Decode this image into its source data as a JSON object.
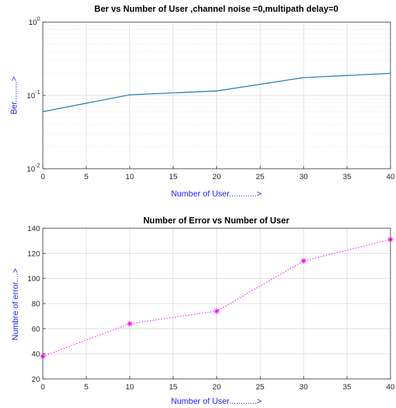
{
  "chart_data": [
    {
      "type": "line",
      "title": "Ber vs Number of User ,channel noise =0,multipath delay=0",
      "xlabel": "Number of User............>",
      "ylabel": "Ber.........>",
      "yscale": "log",
      "grid": true,
      "xlim": [
        0,
        40
      ],
      "ylim": [
        0.01,
        1
      ],
      "xticks": [
        "0",
        "5",
        "10",
        "15",
        "20",
        "25",
        "30",
        "35",
        "40"
      ],
      "yticks": [
        {
          "value": 1,
          "base": "10",
          "exp": "0"
        },
        {
          "value": 0.1,
          "base": "10",
          "exp": "-1"
        },
        {
          "value": 0.01,
          "base": "10",
          "exp": "-2"
        }
      ],
      "line_color": "#1f77b4",
      "x": [
        0,
        10,
        20,
        30,
        40
      ],
      "y": [
        0.06,
        0.102,
        0.115,
        0.175,
        0.2
      ]
    },
    {
      "type": "line",
      "title": "Number of Error vs Number of User",
      "xlabel": "Number of User............>",
      "ylabel": "Numbre of error....>",
      "yscale": "linear",
      "grid": true,
      "xlim": [
        0,
        40
      ],
      "ylim": [
        20,
        140
      ],
      "xticks": [
        "0",
        "5",
        "10",
        "15",
        "20",
        "25",
        "30",
        "35",
        "40"
      ],
      "yticks": [
        "20",
        "40",
        "60",
        "80",
        "100",
        "120",
        "140"
      ],
      "line_color": "#ff00ff",
      "line_style": "dotted",
      "marker": "asterisk",
      "x": [
        0,
        10,
        20,
        30,
        40
      ],
      "y": [
        38,
        64,
        74,
        114,
        131
      ]
    }
  ]
}
